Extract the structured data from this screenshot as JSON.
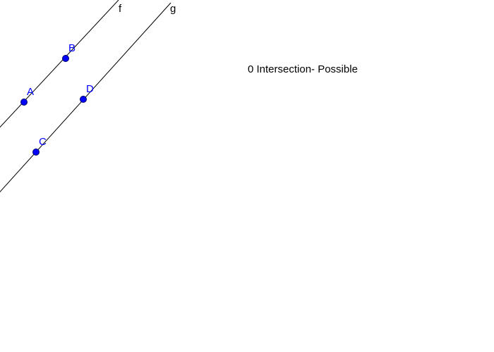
{
  "lines": {
    "f": {
      "label": "f"
    },
    "g": {
      "label": "g"
    }
  },
  "points": {
    "A": {
      "label": "A"
    },
    "B": {
      "label": "B"
    },
    "C": {
      "label": "C"
    },
    "D": {
      "label": "D"
    }
  },
  "info_text": "0 Intersection- Possible",
  "colors": {
    "line": "#000000",
    "point_fill": "#0000ff",
    "point_stroke": "#000066",
    "point_label": "#0000ff",
    "background": "#ffffff"
  }
}
